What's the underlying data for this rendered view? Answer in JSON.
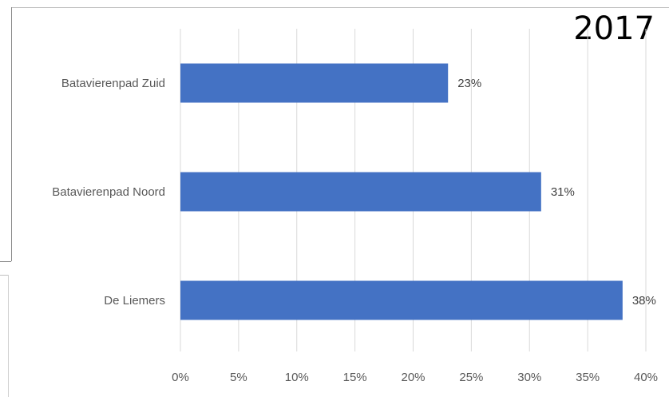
{
  "chart_data": {
    "type": "bar",
    "orientation": "horizontal",
    "title": "2017",
    "categories": [
      "Batavierenpad Zuid",
      "Batavierenpad Noord",
      "De Liemers"
    ],
    "values": [
      23,
      31,
      38
    ],
    "value_labels": [
      "23%",
      "31%",
      "38%"
    ],
    "xlim": [
      0,
      40
    ],
    "x_ticks": [
      0,
      5,
      10,
      15,
      20,
      25,
      30,
      35,
      40
    ],
    "x_tick_labels": [
      "0%",
      "5%",
      "10%",
      "15%",
      "20%",
      "25%",
      "30%",
      "35%",
      "40%"
    ],
    "grid": "vertical",
    "legend": "none",
    "bar_color": "#4472c4"
  }
}
